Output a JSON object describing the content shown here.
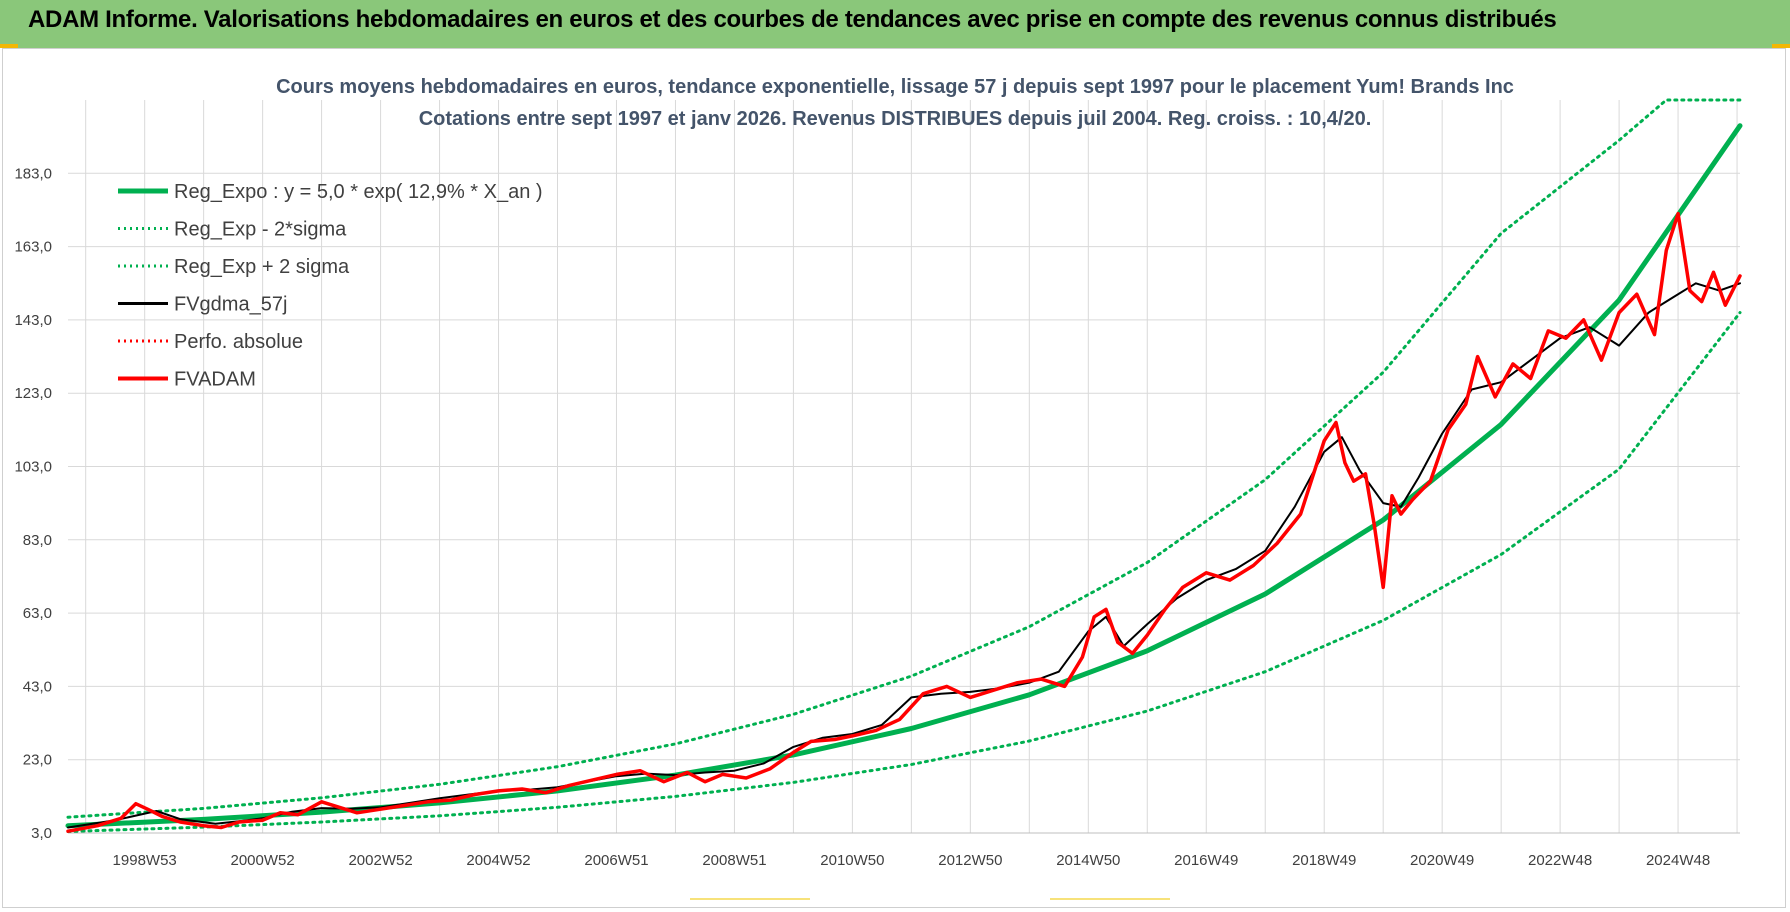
{
  "header": {
    "title": "ADAM Informe. Valorisations hebdomadaires en euros et des courbes de tendances avec prise en compte des revenus connus distribués"
  },
  "chart_data": {
    "type": "line",
    "title": "Cours moyens hebdomadaires en euros, tendance exponentielle, lissage 57 j depuis sept 1997 pour le placement Yum! Brands Inc",
    "subtitle": "Cotations entre sept 1997 et janv 2026. Revenus DISTRIBUES depuis juil 2004. Reg. croiss. : 10,4/20.",
    "xlabel": "",
    "ylabel": "",
    "x_start": 1997.7,
    "x_end": 2026.05,
    "ylim": [
      3,
      203
    ],
    "y_ticks": [
      "3,0",
      "23,0",
      "43,0",
      "63,0",
      "83,0",
      "103,0",
      "123,0",
      "143,0",
      "163,0",
      "183,0"
    ],
    "x_tick_labels": [
      "1998W53",
      "2000W52",
      "2002W52",
      "2004W52",
      "2006W51",
      "2008W51",
      "2010W50",
      "2012W50",
      "2014W50",
      "2016W49",
      "2018W49",
      "2020W49",
      "2022W48",
      "2024W48"
    ],
    "x_tick_positions": [
      1999.0,
      2001.0,
      2003.0,
      2005.0,
      2007.0,
      2009.0,
      2011.0,
      2013.0,
      2015.0,
      2017.0,
      2019.0,
      2021.0,
      2023.0,
      2025.0
    ],
    "grid": true,
    "legend_position": "top-left",
    "colors": {
      "trend": "#00b050",
      "smooth": "#000000",
      "perf": "#ff0000",
      "fvadam": "#ff0000",
      "banner": "#8ac77a"
    },
    "series": [
      {
        "name": "Reg_Expo : y = 5,0 * exp( 12,9% *  X_an )",
        "style": "solid-thick",
        "color": "#00b050",
        "x": [
          1997.7,
          2000,
          2002,
          2004,
          2006,
          2008,
          2010,
          2012,
          2014,
          2016,
          2018,
          2020,
          2022,
          2024,
          2026.05
        ],
        "values": [
          5.0,
          6.7,
          8.7,
          11.2,
          14.5,
          18.8,
          24.3,
          31.5,
          40.7,
          52.7,
          68.2,
          88.4,
          114.5,
          148.4,
          196.0
        ]
      },
      {
        "name": "Reg_Exp - 2*sigma",
        "style": "dotted",
        "color": "#00b050",
        "x": [
          1997.7,
          2000,
          2002,
          2004,
          2006,
          2008,
          2010,
          2012,
          2014,
          2016,
          2018,
          2020,
          2022,
          2024,
          2026.05
        ],
        "values": [
          3.4,
          4.6,
          6.0,
          7.7,
          10.0,
          13.0,
          16.8,
          21.7,
          28.1,
          36.3,
          47.0,
          61.0,
          79.0,
          102.3,
          145.0
        ]
      },
      {
        "name": "Reg_Exp + 2 sigma",
        "style": "dotted",
        "color": "#00b050",
        "x": [
          1997.7,
          2000,
          2002,
          2004,
          2006,
          2008,
          2010,
          2012,
          2014,
          2016,
          2018,
          2020,
          2022,
          2024,
          2024.8,
          2026.05
        ],
        "values": [
          7.3,
          9.7,
          12.6,
          16.3,
          21.1,
          27.3,
          35.4,
          45.8,
          59.3,
          76.8,
          99.4,
          128.7,
          166.6,
          192.0,
          203.0,
          203.0
        ]
      },
      {
        "name": "FVgdma_57j",
        "style": "solid",
        "color": "#000000",
        "x": [
          1997.7,
          1998.5,
          1999.2,
          1999.6,
          2000.2,
          2000.6,
          2001.0,
          2001.5,
          2002.0,
          2002.5,
          2003.0,
          2003.5,
          2004.0,
          2004.5,
          2005.0,
          2005.5,
          2006.0,
          2006.5,
          2007.0,
          2007.5,
          2008.0,
          2008.5,
          2009.0,
          2009.5,
          2010.0,
          2010.5,
          2011.0,
          2011.5,
          2012.0,
          2012.5,
          2013.0,
          2013.5,
          2014.0,
          2014.5,
          2015.0,
          2015.3,
          2015.6,
          2016.0,
          2016.5,
          2017.0,
          2017.5,
          2018.0,
          2018.5,
          2019.0,
          2019.3,
          2019.6,
          2020.0,
          2020.3,
          2020.6,
          2021.0,
          2021.5,
          2022.0,
          2022.5,
          2023.0,
          2023.5,
          2024.0,
          2024.5,
          2024.9,
          2025.3,
          2025.7,
          2026.05
        ],
        "values": [
          4.5,
          6.5,
          9.0,
          6.8,
          5.5,
          6.2,
          7.0,
          8.8,
          9.8,
          9.6,
          10.0,
          11.2,
          12.5,
          13.5,
          14.5,
          14.8,
          15.5,
          17.0,
          18.5,
          19.2,
          18.8,
          19.5,
          20.0,
          22.0,
          26.5,
          29.0,
          30.0,
          32.5,
          40.0,
          41.0,
          41.5,
          42.5,
          44.0,
          47.0,
          58.0,
          62.0,
          54.0,
          60.0,
          67.0,
          72.0,
          75.0,
          80.0,
          92.0,
          107.0,
          111.0,
          102.0,
          93.0,
          92.0,
          100.0,
          112.0,
          124.0,
          126.0,
          132.0,
          138.0,
          141.0,
          136.0,
          145.0,
          149.0,
          153.0,
          151.0,
          153.0
        ]
      },
      {
        "name": "Perfo. absolue",
        "style": "dotted",
        "color": "#ff0000",
        "x": [],
        "values": []
      },
      {
        "name": "FVADAM",
        "style": "solid-thick",
        "color": "#ff0000",
        "x": [
          1997.7,
          1998.2,
          1998.6,
          1998.85,
          1999.05,
          1999.3,
          1999.6,
          2000.0,
          2000.3,
          2000.6,
          2001.0,
          2001.3,
          2001.6,
          2002.0,
          2002.3,
          2002.6,
          2003.0,
          2003.4,
          2003.8,
          2004.2,
          2004.6,
          2005.0,
          2005.4,
          2005.8,
          2006.2,
          2006.6,
          2007.0,
          2007.4,
          2007.8,
          2008.2,
          2008.5,
          2008.8,
          2009.2,
          2009.6,
          2010.0,
          2010.3,
          2010.7,
          2011.0,
          2011.4,
          2011.8,
          2012.2,
          2012.6,
          2013.0,
          2013.4,
          2013.8,
          2014.2,
          2014.6,
          2014.9,
          2015.1,
          2015.3,
          2015.5,
          2015.75,
          2016.0,
          2016.3,
          2016.6,
          2017.0,
          2017.4,
          2017.8,
          2018.2,
          2018.6,
          2019.0,
          2019.2,
          2019.35,
          2019.5,
          2019.7,
          2019.85,
          2020.0,
          2020.15,
          2020.3,
          2020.5,
          2020.8,
          2021.1,
          2021.4,
          2021.6,
          2021.9,
          2022.2,
          2022.5,
          2022.8,
          2023.1,
          2023.4,
          2023.7,
          2024.0,
          2024.3,
          2024.6,
          2024.8,
          2025.0,
          2025.2,
          2025.4,
          2025.6,
          2025.8,
          2026.05
        ],
        "values": [
          3.5,
          5.0,
          7.0,
          11.0,
          9.5,
          7.5,
          6.0,
          5.0,
          4.5,
          6.0,
          6.5,
          8.5,
          8.0,
          11.5,
          10.0,
          8.5,
          9.5,
          10.5,
          11.5,
          12.0,
          13.5,
          14.5,
          15.0,
          14.0,
          16.0,
          17.5,
          19.0,
          20.0,
          17.0,
          19.5,
          17.0,
          19.0,
          18.0,
          20.5,
          25.0,
          28.0,
          28.5,
          29.5,
          31.0,
          34.0,
          41.0,
          43.0,
          40.0,
          42.0,
          44.0,
          45.0,
          43.0,
          51.0,
          62.0,
          64.0,
          55.0,
          52.0,
          57.0,
          64.0,
          70.0,
          74.0,
          72.0,
          76.0,
          82.0,
          90.0,
          110.0,
          115.0,
          104.0,
          99.0,
          101.0,
          87.0,
          70.0,
          95.0,
          90.0,
          94.0,
          99.0,
          113.0,
          120.0,
          133.0,
          122.0,
          131.0,
          127.0,
          140.0,
          138.0,
          143.0,
          132.0,
          145.0,
          150.0,
          139.0,
          162.0,
          172.0,
          151.0,
          148.0,
          156.0,
          147.0,
          155.0
        ]
      }
    ]
  }
}
